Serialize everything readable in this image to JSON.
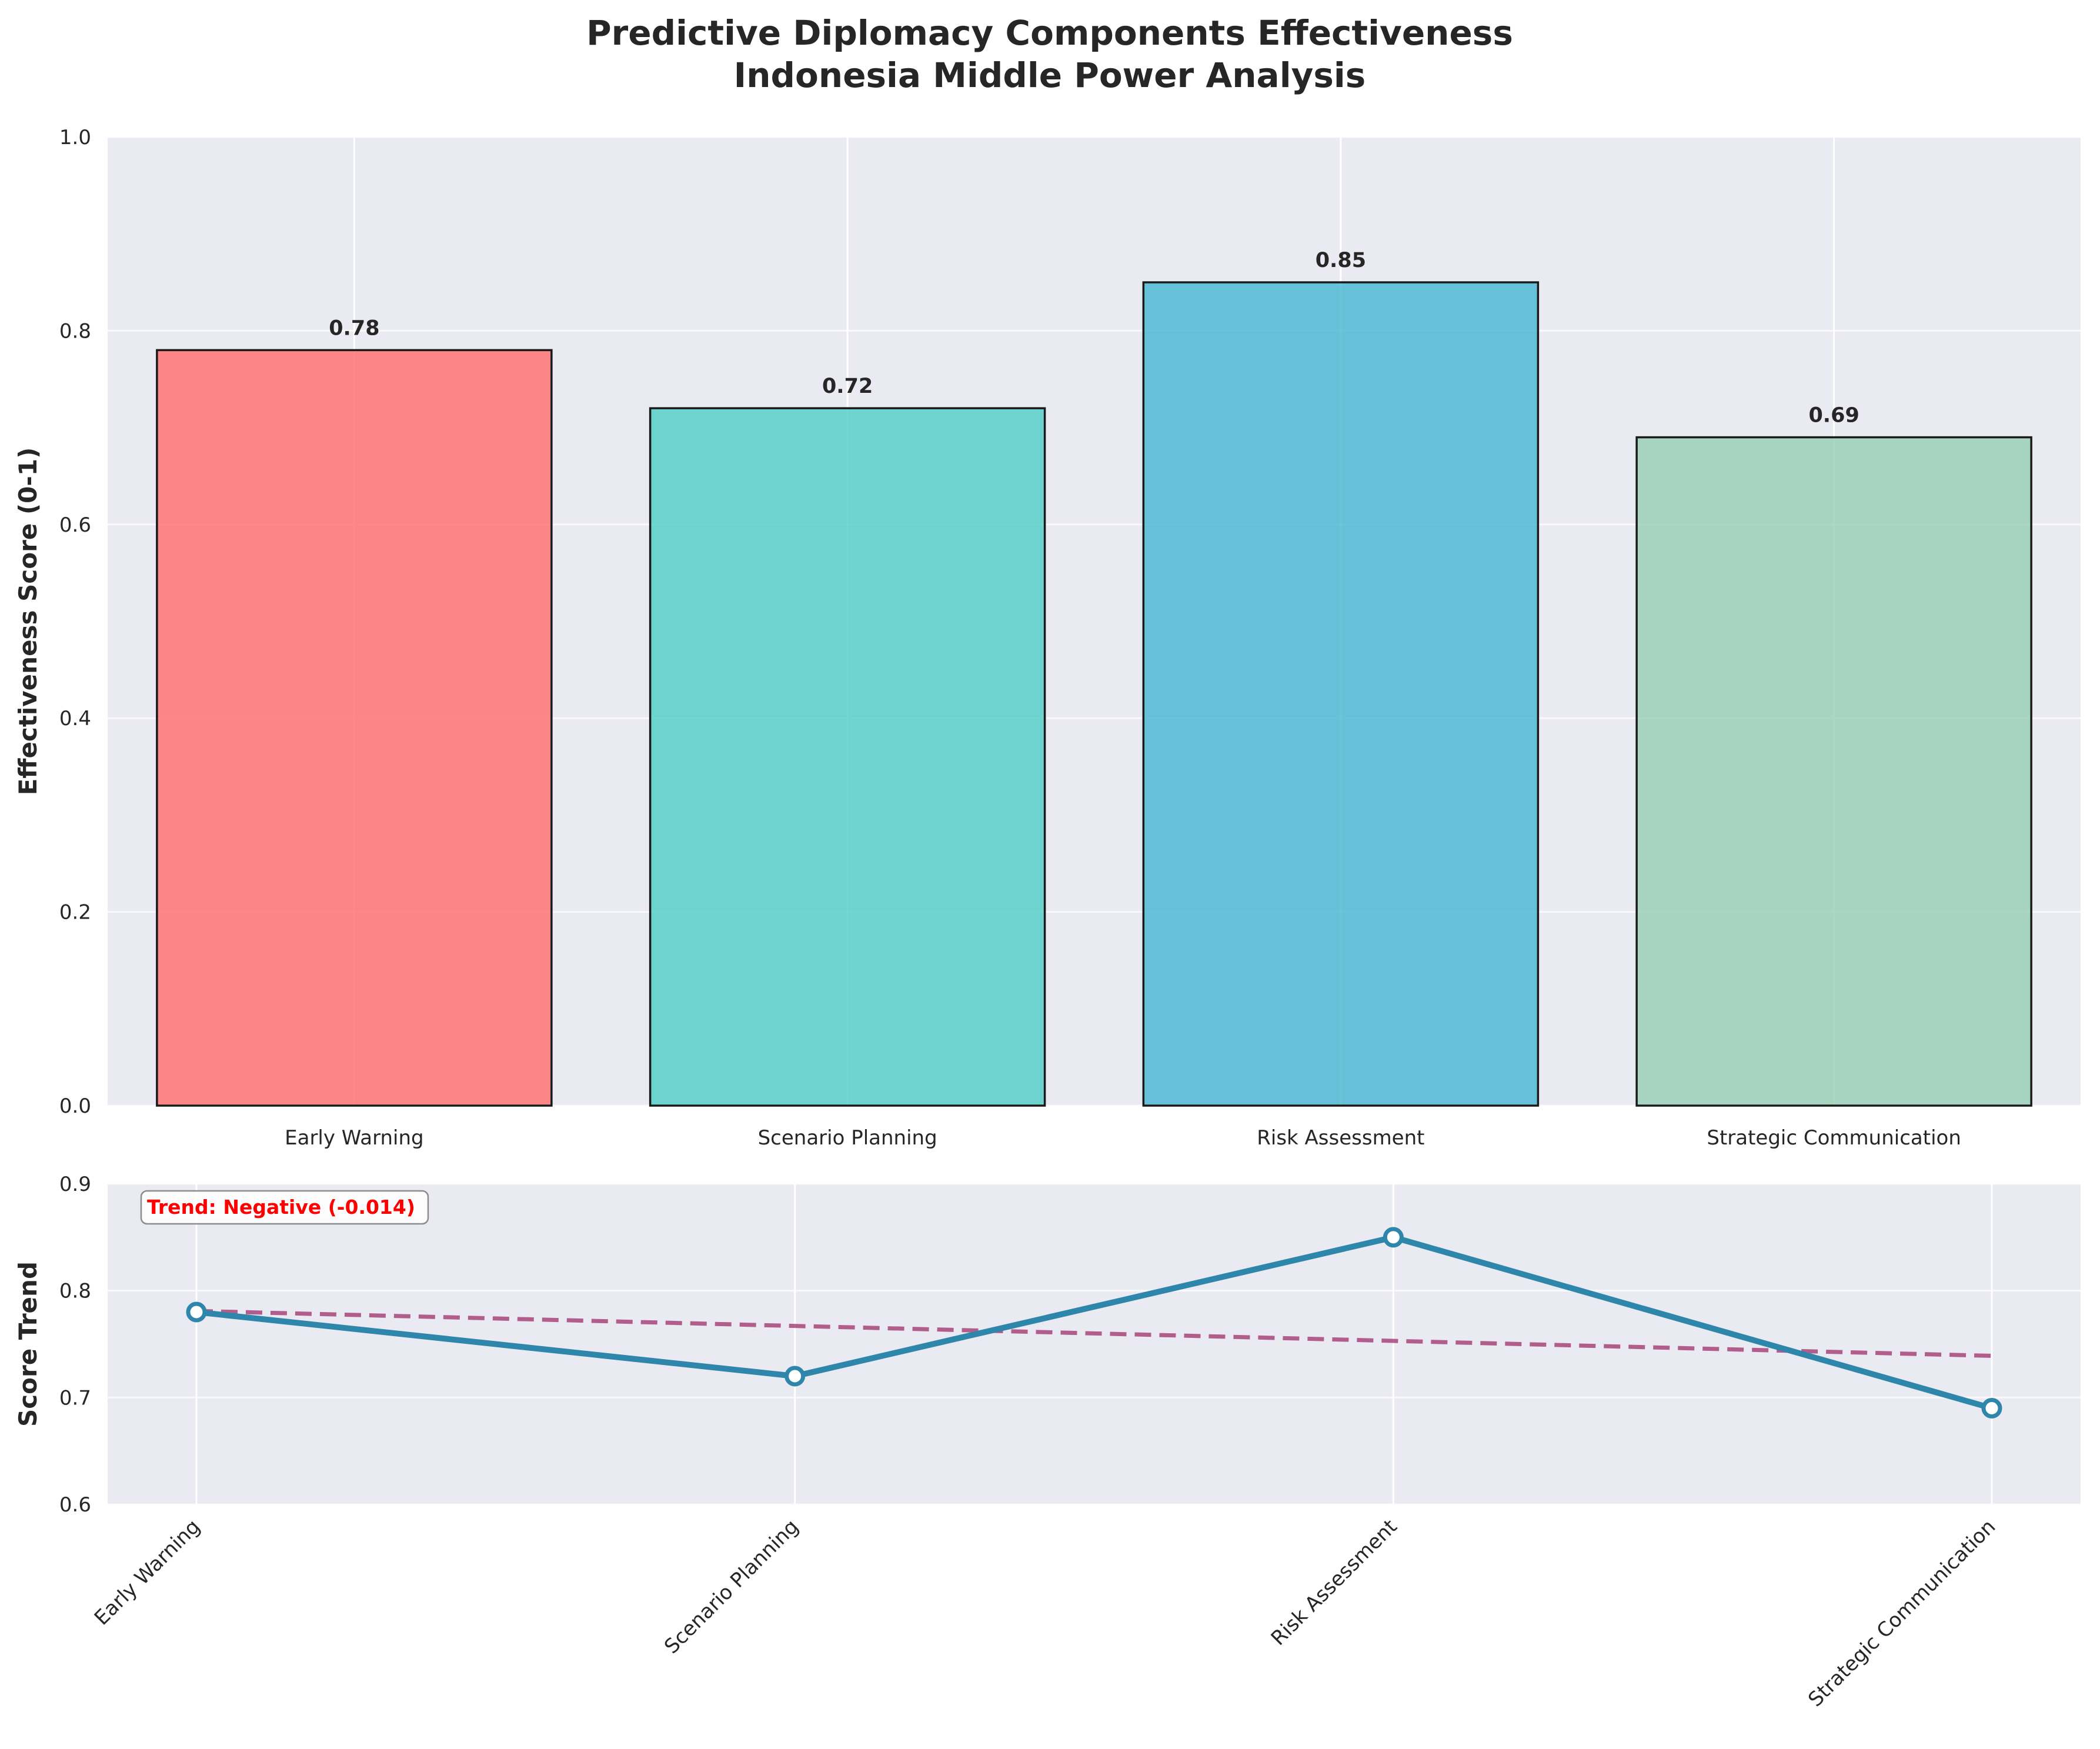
{
  "chart_data": [
    {
      "type": "bar",
      "title_lines": [
        "Predictive Diplomacy Components Effectiveness",
        "Indonesia Middle Power Analysis"
      ],
      "ylabel": "Effectiveness Score (0-1)",
      "categories": [
        "Early Warning",
        "Scenario Planning",
        "Risk Assessment",
        "Strategic Communication"
      ],
      "values": [
        0.78,
        0.72,
        0.85,
        0.69
      ],
      "value_labels": [
        "0.78",
        "0.72",
        "0.85",
        "0.69"
      ],
      "colors": [
        "#ff6b6b",
        "#4ecdc4",
        "#45b7d1",
        "#96ceb4"
      ],
      "ylim": [
        0,
        1.0
      ],
      "yticks": [
        0.0,
        0.2,
        0.4,
        0.6,
        0.8,
        1.0
      ],
      "ytick_labels": [
        "0.0",
        "0.2",
        "0.4",
        "0.6",
        "0.8",
        "1.0"
      ],
      "grid": true
    },
    {
      "type": "line",
      "ylabel": "Score Trend",
      "categories": [
        "Early Warning",
        "Scenario Planning",
        "Risk Assessment",
        "Strategic Communication"
      ],
      "values": [
        0.78,
        0.72,
        0.85,
        0.69
      ],
      "trendline": {
        "start": 0.781,
        "end": 0.739
      },
      "line_color": "#2e86ab",
      "trend_color": "#a23b72",
      "annotation": "Trend: Negative (-0.014)",
      "ylim": [
        0.6,
        0.9
      ],
      "yticks": [
        0.6,
        0.7,
        0.8,
        0.9
      ],
      "ytick_labels": [
        "0.6",
        "0.7",
        "0.8",
        "0.9"
      ],
      "grid": true
    }
  ]
}
